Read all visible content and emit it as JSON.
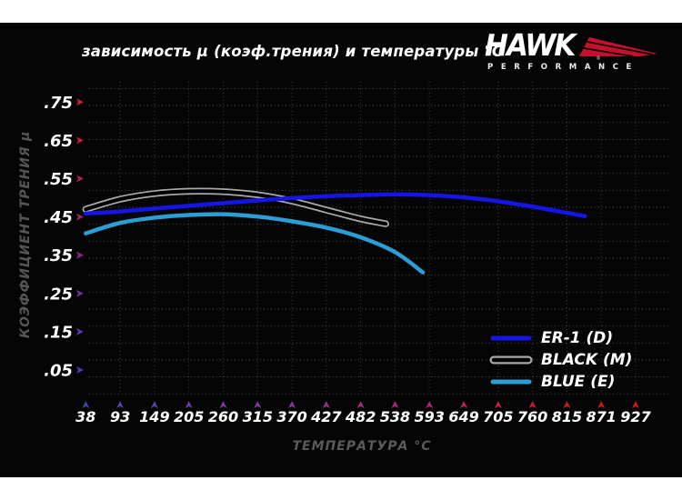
{
  "window": {
    "background": "#ffffff",
    "panel_background": "#050505"
  },
  "title": "зависимость μ (коэф.трения) и температуры °C",
  "logo": {
    "brand": "HAWK",
    "subtitle": "PERFORMANCE",
    "registered": "®",
    "wing_color": "#c8102e",
    "text_color": "#ffffff"
  },
  "chart_data": {
    "type": "line",
    "title": "зависимость μ (коэф.трения) и температуры °C",
    "xlabel": "ТЕМПЕРАТУРА °C",
    "ylabel": "КОЭФФИЦИЕНТ ТРЕНИЯ μ",
    "xlim": [
      38,
      927
    ],
    "ylim": [
      0,
      0.8
    ],
    "grid": {
      "style": "dotted",
      "color": "#8a8a8a"
    },
    "axis_colors": {
      "y_top": "#e01828",
      "y_bottom": "#2e2e78",
      "x_left": "#32327c",
      "x_right": "#b81e24"
    },
    "x_ticks": [
      {
        "label": "38",
        "color": "#4343a2"
      },
      {
        "label": "93",
        "color": "#4c42a4"
      },
      {
        "label": "149",
        "color": "#5740a5"
      },
      {
        "label": "205",
        "color": "#633ea5"
      },
      {
        "label": "260",
        "color": "#6f3ba3"
      },
      {
        "label": "315",
        "color": "#7b379f"
      },
      {
        "label": "370",
        "color": "#873399"
      },
      {
        "label": "427",
        "color": "#932f90"
      },
      {
        "label": "482",
        "color": "#9e2a85"
      },
      {
        "label": "538",
        "color": "#a82678"
      },
      {
        "label": "593",
        "color": "#b12268"
      },
      {
        "label": "649",
        "color": "#b91f57"
      },
      {
        "label": "705",
        "color": "#bf1c46"
      },
      {
        "label": "760",
        "color": "#c41a37"
      },
      {
        "label": "815",
        "color": "#c7192c"
      },
      {
        "label": "871",
        "color": "#c91824"
      },
      {
        "label": "927",
        "color": "#ca1820"
      }
    ],
    "y_ticks": [
      {
        "label": ".75",
        "value": 0.75,
        "color": "#d41a2c"
      },
      {
        "label": ".65",
        "value": 0.65,
        "color": "#c61c3e"
      },
      {
        "label": ".55",
        "value": 0.55,
        "color": "#b32055"
      },
      {
        "label": ".45",
        "value": 0.45,
        "color": "#9e246e"
      },
      {
        "label": ".35",
        "value": 0.35,
        "color": "#872a86"
      },
      {
        "label": ".25",
        "value": 0.25,
        "color": "#6f3198"
      },
      {
        "label": ".15",
        "value": 0.15,
        "color": "#5839a8"
      },
      {
        "label": ".05",
        "value": 0.05,
        "color": "#4a40b4"
      }
    ],
    "series": [
      {
        "name": "ER-1 (D)",
        "color": "#1515e8",
        "line_width": 4.5,
        "points": [
          [
            38,
            0.459
          ],
          [
            93,
            0.464
          ],
          [
            149,
            0.472
          ],
          [
            205,
            0.479
          ],
          [
            260,
            0.486
          ],
          [
            315,
            0.493
          ],
          [
            370,
            0.499
          ],
          [
            427,
            0.504
          ],
          [
            482,
            0.507
          ],
          [
            538,
            0.509
          ],
          [
            593,
            0.507
          ],
          [
            649,
            0.501
          ],
          [
            705,
            0.491
          ],
          [
            760,
            0.477
          ],
          [
            815,
            0.461
          ],
          [
            845,
            0.452
          ]
        ]
      },
      {
        "name": "BLACK (M)",
        "color": "#000000",
        "outline_color": "#a8a8a8",
        "line_width": 4,
        "points": [
          [
            38,
            0.47
          ],
          [
            93,
            0.496
          ],
          [
            149,
            0.511
          ],
          [
            205,
            0.517
          ],
          [
            260,
            0.516
          ],
          [
            315,
            0.508
          ],
          [
            370,
            0.492
          ],
          [
            427,
            0.468
          ],
          [
            482,
            0.445
          ],
          [
            523,
            0.432
          ]
        ]
      },
      {
        "name": "BLUE (E)",
        "color": "#2b9ed6",
        "line_width": 4.5,
        "points": [
          [
            38,
            0.407
          ],
          [
            93,
            0.434
          ],
          [
            149,
            0.448
          ],
          [
            205,
            0.455
          ],
          [
            260,
            0.457
          ],
          [
            315,
            0.451
          ],
          [
            370,
            0.439
          ],
          [
            427,
            0.422
          ],
          [
            482,
            0.397
          ],
          [
            538,
            0.358
          ],
          [
            583,
            0.305
          ]
        ]
      }
    ],
    "legend": {
      "position": "lower right",
      "items": [
        "ER-1 (D)",
        "BLACK (M)",
        "BLUE (E)"
      ]
    }
  }
}
